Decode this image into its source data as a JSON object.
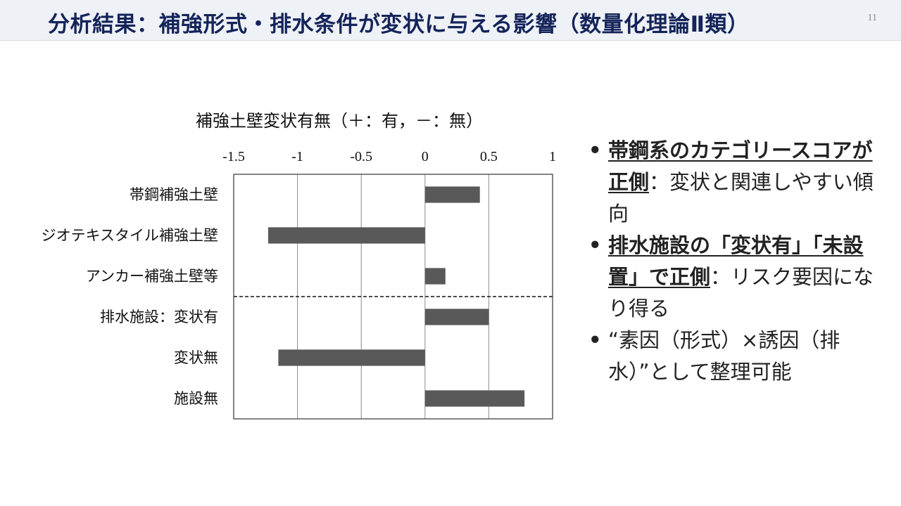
{
  "slide": {
    "title": "分析結果：補強形式・排水条件が変状に与える影響（数量化理論Ⅱ類）",
    "page_number": "11"
  },
  "bullets": [
    {
      "bold": "帯鋼系のカテゴリースコアが正側",
      "rest": "：変状と関連しやすい傾向"
    },
    {
      "bold": "排水施設の「変状有」「未設置」で正側",
      "rest": "：リスク要因になり得る"
    },
    {
      "bold": "",
      "rest": "“素因（形式）×誘因（排水）”として整理可能"
    }
  ],
  "bullet_marker": "•",
  "chart_data": {
    "type": "bar",
    "orientation": "horizontal",
    "title": "補強土壁変状有無（＋：有，－：無）",
    "categories": [
      "帯鋼補強土壁",
      "ジオテキスタイル補強土壁",
      "アンカー補強土壁等",
      "排水施設：変状有",
      "変状無",
      "施設無"
    ],
    "values": [
      0.43,
      -1.23,
      0.16,
      0.5,
      -1.15,
      0.78
    ],
    "xlim": [
      -1.5,
      1
    ],
    "xticks": [
      -1.5,
      -1,
      -0.5,
      0,
      0.5,
      1
    ],
    "xtick_labels": [
      "-1.5",
      "-1",
      "-0.5",
      "0",
      "0.5",
      "1"
    ],
    "grid": "vertical",
    "group_separator": "dashed line between 3rd and 4th category",
    "bar_color": "#595959"
  }
}
